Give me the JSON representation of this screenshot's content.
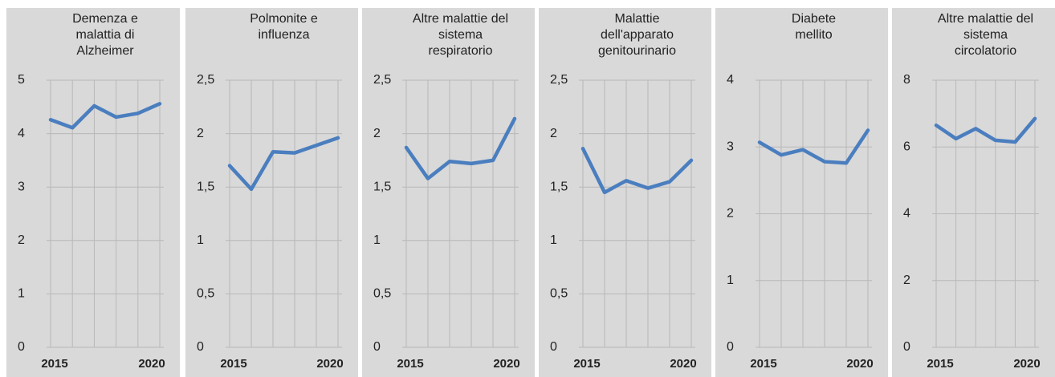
{
  "chart_data": [
    {
      "type": "line",
      "title": [
        "Demenza e",
        "malattia di",
        "Alzheimer"
      ],
      "categories": [
        "2015",
        null,
        null,
        null,
        null,
        "2020"
      ],
      "values": [
        4.26,
        4.11,
        4.52,
        4.31,
        4.38,
        4.56
      ],
      "color": "#4a7ebf",
      "ylim": [
        0,
        5
      ],
      "yticks": [
        0,
        1,
        2,
        3,
        4,
        5
      ],
      "grid": true
    },
    {
      "type": "line",
      "title": [
        "Polmonite e",
        "influenza"
      ],
      "categories": [
        "2015",
        null,
        null,
        null,
        null,
        "2020"
      ],
      "values": [
        1.7,
        1.48,
        1.83,
        1.82,
        1.89,
        1.96
      ],
      "color": "#4a7ebf",
      "ylim": [
        0,
        2.5
      ],
      "yticks": [
        0,
        {
          "value": 0.5,
          "label": "0,5"
        },
        1,
        {
          "value": 1.5,
          "label": "1,5"
        },
        2,
        {
          "value": 2.5,
          "label": "2,5"
        }
      ],
      "grid": true
    },
    {
      "type": "line",
      "title": [
        "Altre malattie del",
        "sistema",
        "respiratorio"
      ],
      "categories": [
        "2015",
        null,
        null,
        null,
        null,
        "2020"
      ],
      "values": [
        1.87,
        1.58,
        1.74,
        1.72,
        1.75,
        2.14
      ],
      "color": "#4a7ebf",
      "ylim": [
        0,
        2.5
      ],
      "yticks": [
        0,
        {
          "value": 0.5,
          "label": "0,5"
        },
        1,
        {
          "value": 1.5,
          "label": "1,5"
        },
        2,
        {
          "value": 2.5,
          "label": "2,5"
        }
      ],
      "grid": true
    },
    {
      "type": "line",
      "title": [
        "Malattie",
        "dell'apparato",
        "genitourinario"
      ],
      "categories": [
        "2015",
        null,
        null,
        null,
        null,
        "2020"
      ],
      "values": [
        1.86,
        1.45,
        1.56,
        1.49,
        1.55,
        1.75
      ],
      "color": "#4a7ebf",
      "ylim": [
        0,
        2.5
      ],
      "yticks": [
        0,
        {
          "value": 0.5,
          "label": "0,5"
        },
        1,
        {
          "value": 1.5,
          "label": "1,5"
        },
        2,
        {
          "value": 2.5,
          "label": "2,5"
        }
      ],
      "grid": true
    },
    {
      "type": "line",
      "title": [
        "Diabete",
        "mellito"
      ],
      "categories": [
        "2015",
        null,
        null,
        null,
        null,
        "2020"
      ],
      "values": [
        3.07,
        2.88,
        2.96,
        2.78,
        2.76,
        3.25
      ],
      "color": "#4a7ebf",
      "ylim": [
        0,
        4
      ],
      "yticks": [
        0,
        1,
        2,
        3,
        4
      ],
      "grid": true
    },
    {
      "type": "line",
      "title": [
        "Altre malattie del",
        "sistema",
        "circolatorio"
      ],
      "categories": [
        "2015",
        null,
        null,
        null,
        null,
        "2020"
      ],
      "values": [
        6.65,
        6.25,
        6.55,
        6.2,
        6.15,
        6.85
      ],
      "color": "#4a7ebf",
      "ylim": [
        0,
        8
      ],
      "yticks": [
        0,
        2,
        4,
        6,
        8
      ],
      "grid": true
    }
  ]
}
